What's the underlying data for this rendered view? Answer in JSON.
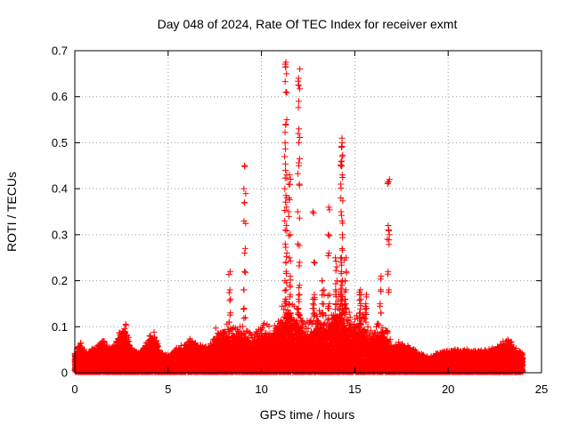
{
  "chart_data": {
    "type": "scatter",
    "title": "Day 048 of 2024, Rate Of TEC Index for receiver exmt",
    "xlabel": "GPS time / hours",
    "ylabel": "ROTI / TECUs",
    "xlim": [
      0,
      25
    ],
    "ylim": [
      0,
      0.7
    ],
    "xticks": [
      0,
      5,
      10,
      15,
      20,
      25
    ],
    "yticks": [
      0,
      0.1,
      0.2,
      0.3,
      0.4,
      0.5,
      0.6,
      0.7
    ],
    "xtick_labels": [
      "0",
      "5",
      "10",
      "15",
      "20",
      "25"
    ],
    "ytick_labels": [
      "0",
      "0.1",
      "0.2",
      "0.3",
      "0.4",
      "0.5",
      "0.6",
      "0.7"
    ],
    "grid": true,
    "marker": "+",
    "color": "#ff0000",
    "series": [
      {
        "name": "ROTI",
        "x_range": [
          0,
          24
        ],
        "baseline_envelope": [
          [
            0.0,
            0.04
          ],
          [
            0.3,
            0.06
          ],
          [
            0.6,
            0.04
          ],
          [
            1.0,
            0.05
          ],
          [
            1.5,
            0.065
          ],
          [
            2.0,
            0.05
          ],
          [
            2.7,
            0.1
          ],
          [
            3.0,
            0.05
          ],
          [
            3.5,
            0.04
          ],
          [
            4.2,
            0.085
          ],
          [
            4.6,
            0.04
          ],
          [
            5.0,
            0.035
          ],
          [
            5.5,
            0.05
          ],
          [
            6.2,
            0.065
          ],
          [
            7.0,
            0.05
          ],
          [
            7.5,
            0.07
          ],
          [
            8.0,
            0.08
          ],
          [
            8.5,
            0.075
          ],
          [
            9.0,
            0.08
          ],
          [
            9.5,
            0.06
          ],
          [
            10.0,
            0.085
          ],
          [
            10.5,
            0.07
          ],
          [
            11.0,
            0.1
          ],
          [
            11.4,
            0.12
          ],
          [
            12.0,
            0.1
          ],
          [
            12.5,
            0.08
          ],
          [
            13.0,
            0.1
          ],
          [
            13.5,
            0.09
          ],
          [
            14.2,
            0.13
          ],
          [
            14.8,
            0.09
          ],
          [
            15.3,
            0.1
          ],
          [
            15.8,
            0.07
          ],
          [
            16.5,
            0.08
          ],
          [
            17.0,
            0.05
          ],
          [
            17.5,
            0.065
          ],
          [
            18.0,
            0.05
          ],
          [
            18.5,
            0.04
          ],
          [
            19.0,
            0.03
          ],
          [
            19.5,
            0.04
          ],
          [
            20.0,
            0.045
          ],
          [
            21.0,
            0.045
          ],
          [
            22.0,
            0.045
          ],
          [
            22.6,
            0.05
          ],
          [
            23.2,
            0.07
          ],
          [
            23.6,
            0.05
          ],
          [
            24.0,
            0.04
          ]
        ],
        "spikes": [
          {
            "x": 8.3,
            "y": [
              0.22,
              0.18,
              0.16,
              0.13,
              0.11
            ]
          },
          {
            "x": 9.1,
            "y": [
              0.45,
              0.4,
              0.37,
              0.33,
              0.27,
              0.22,
              0.18,
              0.14,
              0.12
            ]
          },
          {
            "x": 11.3,
            "y": [
              0.675,
              0.665,
              0.65,
              0.61,
              0.55,
              0.54,
              0.5,
              0.47,
              0.44,
              0.43,
              0.4,
              0.38,
              0.36,
              0.33,
              0.31,
              0.28,
              0.26,
              0.24,
              0.22,
              0.2,
              0.18,
              0.16,
              0.15,
              0.13,
              0.12
            ]
          },
          {
            "x": 11.5,
            "y": [
              0.43,
              0.41,
              0.38,
              0.35,
              0.3,
              0.25,
              0.21,
              0.19,
              0.17,
              0.15,
              0.13
            ]
          },
          {
            "x": 12.0,
            "y": [
              0.66,
              0.64,
              0.625,
              0.59,
              0.53,
              0.52,
              0.465,
              0.45,
              0.41,
              0.35,
              0.28,
              0.24,
              0.19,
              0.17,
              0.16,
              0.14,
              0.13
            ]
          },
          {
            "x": 12.8,
            "y": [
              0.35,
              0.24,
              0.17,
              0.16,
              0.15,
              0.14,
              0.13
            ]
          },
          {
            "x": 13.3,
            "y": [
              0.2,
              0.18,
              0.17,
              0.15,
              0.13
            ]
          },
          {
            "x": 13.6,
            "y": [
              0.36,
              0.3,
              0.26,
              0.17,
              0.15,
              0.14
            ]
          },
          {
            "x": 14.0,
            "y": [
              0.25,
              0.23,
              0.2,
              0.18,
              0.17,
              0.15
            ]
          },
          {
            "x": 14.3,
            "y": [
              0.51,
              0.5,
              0.49,
              0.47,
              0.46,
              0.45,
              0.43,
              0.41,
              0.38,
              0.35,
              0.33,
              0.3,
              0.27,
              0.25,
              0.24,
              0.22,
              0.2,
              0.19,
              0.18,
              0.17,
              0.16,
              0.15,
              0.14,
              0.13
            ]
          },
          {
            "x": 14.5,
            "y": [
              0.25,
              0.22,
              0.2,
              0.18,
              0.16,
              0.15,
              0.14,
              0.13
            ]
          },
          {
            "x": 15.3,
            "y": [
              0.18,
              0.17,
              0.16,
              0.15,
              0.13,
              0.12
            ]
          },
          {
            "x": 15.6,
            "y": [
              0.17,
              0.15,
              0.14,
              0.13
            ]
          },
          {
            "x": 16.4,
            "y": [
              0.21,
              0.18,
              0.15,
              0.13
            ]
          },
          {
            "x": 16.8,
            "y": [
              0.42,
              0.415,
              0.32,
              0.31,
              0.3,
              0.29,
              0.22,
              0.18,
              0.09
            ]
          }
        ]
      }
    ]
  }
}
